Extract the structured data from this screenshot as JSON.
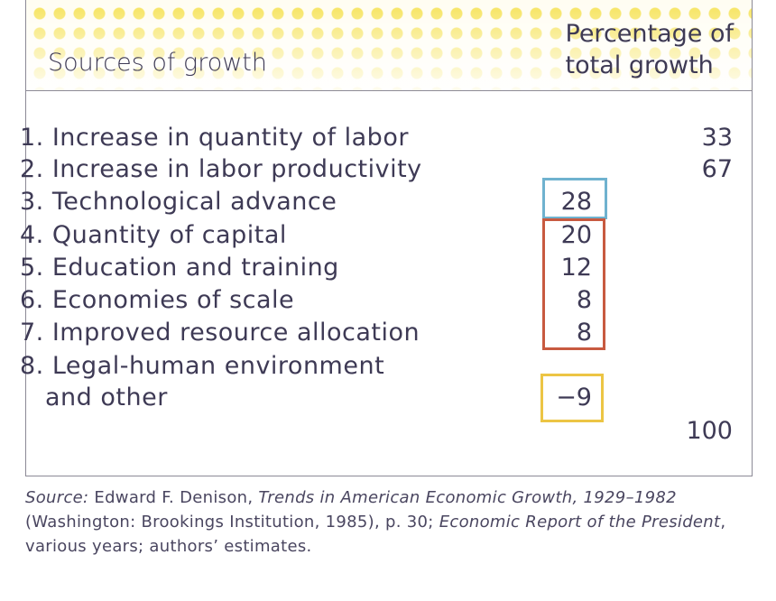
{
  "header": {
    "left": "Sources of growth",
    "right_line1": "Percentage of",
    "right_line2": "total growth"
  },
  "rows": [
    {
      "label": "1. Increase in quantity of labor",
      "total": "33"
    },
    {
      "label": "2. Increase in labor productivity",
      "total": "67"
    },
    {
      "label": "3. Technological advance",
      "value": "28"
    },
    {
      "label": "4. Quantity of capital",
      "value": "20"
    },
    {
      "label": "5. Education and training",
      "value": "12"
    },
    {
      "label": "6. Economies of scale",
      "value": "8"
    },
    {
      "label": "7. Improved resource allocation",
      "value": "8"
    },
    {
      "label_line1": "8. Legal-human environment",
      "label_line2": "and other",
      "value": "−9"
    }
  ],
  "grand_total": "100",
  "source": {
    "prefix": "Source:",
    "author": " Edward F. Denison, ",
    "book": "Trends in American Economic Growth, 1929–1982",
    "publisher": " (Washington: Brookings Institution, 1985), p. 30; ",
    "report": "Economic Report of the President",
    "suffix": ", various years; authors’ estimates."
  },
  "colors": {
    "technology_box": "#6fb2cf",
    "capital_group_box": "#c85a40",
    "negative_box": "#ecc544"
  }
}
